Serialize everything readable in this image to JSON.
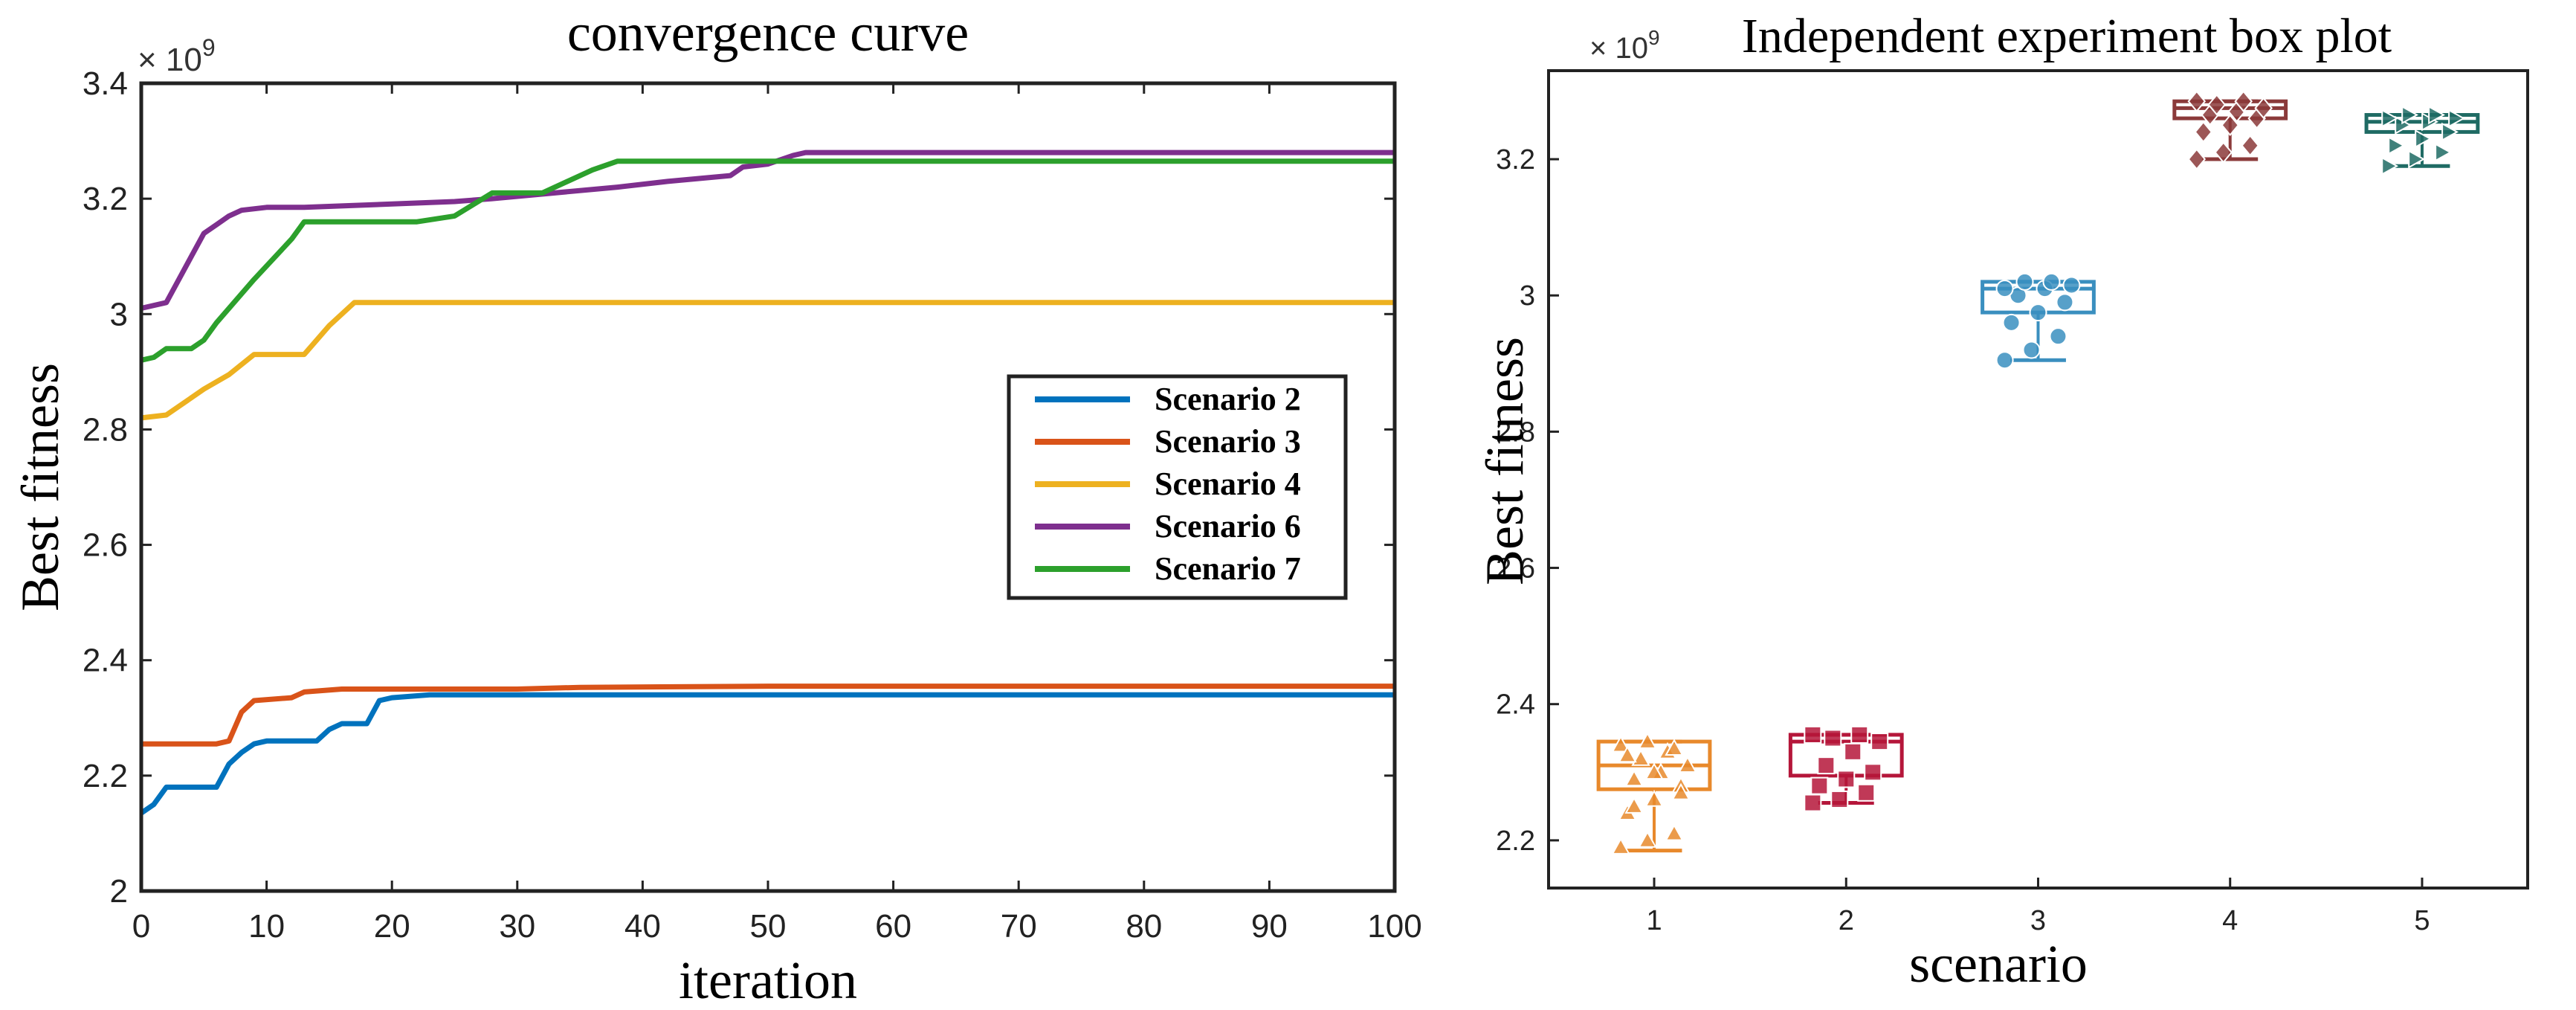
{
  "chart_data": [
    {
      "type": "line",
      "title": "convergence curve",
      "xlabel": "iteration",
      "ylabel": "Best fitness",
      "exponent_label": "× 10",
      "exponent_power": "9",
      "xlim": [
        0,
        100
      ],
      "ylim": [
        2.0,
        3.4
      ],
      "xticks": [
        0,
        10,
        20,
        30,
        40,
        50,
        60,
        70,
        80,
        90,
        100
      ],
      "yticks": [
        2.0,
        2.2,
        2.4,
        2.6,
        2.8,
        3.0,
        3.2,
        3.4
      ],
      "ytick_labels": [
        "2",
        "2.2",
        "2.4",
        "2.6",
        "2.8",
        "3",
        "3.2",
        "3.4"
      ],
      "legend_position": "center-right",
      "series": [
        {
          "name": "Scenario 2",
          "color": "#0072BD",
          "points": [
            [
              0,
              2.135
            ],
            [
              1,
              2.15
            ],
            [
              2,
              2.18
            ],
            [
              3,
              2.18
            ],
            [
              6,
              2.18
            ],
            [
              7,
              2.22
            ],
            [
              8,
              2.24
            ],
            [
              9,
              2.255
            ],
            [
              10,
              2.26
            ],
            [
              14,
              2.26
            ],
            [
              15,
              2.28
            ],
            [
              16,
              2.29
            ],
            [
              18,
              2.29
            ],
            [
              19,
              2.33
            ],
            [
              20,
              2.335
            ],
            [
              23,
              2.34
            ],
            [
              100,
              2.34
            ]
          ]
        },
        {
          "name": "Scenario 3",
          "color": "#D95319",
          "points": [
            [
              0,
              2.255
            ],
            [
              6,
              2.255
            ],
            [
              7,
              2.26
            ],
            [
              8,
              2.31
            ],
            [
              9,
              2.33
            ],
            [
              12,
              2.335
            ],
            [
              13,
              2.345
            ],
            [
              16,
              2.35
            ],
            [
              30,
              2.35
            ],
            [
              35,
              2.353
            ],
            [
              50,
              2.355
            ],
            [
              100,
              2.355
            ]
          ]
        },
        {
          "name": "Scenario 4",
          "color": "#EDB120",
          "points": [
            [
              0,
              2.82
            ],
            [
              2,
              2.825
            ],
            [
              3,
              2.84
            ],
            [
              5,
              2.87
            ],
            [
              7,
              2.895
            ],
            [
              9,
              2.93
            ],
            [
              13,
              2.93
            ],
            [
              15,
              2.98
            ],
            [
              17,
              3.02
            ],
            [
              30,
              3.02
            ],
            [
              50,
              3.02
            ],
            [
              100,
              3.02
            ]
          ]
        },
        {
          "name": "Scenario 6",
          "color": "#7E2F8E",
          "points": [
            [
              0,
              3.01
            ],
            [
              2,
              3.02
            ],
            [
              3,
              3.06
            ],
            [
              4,
              3.1
            ],
            [
              5,
              3.14
            ],
            [
              6,
              3.155
            ],
            [
              7,
              3.17
            ],
            [
              8,
              3.18
            ],
            [
              10,
              3.185
            ],
            [
              13,
              3.185
            ],
            [
              25,
              3.195
            ],
            [
              28,
              3.2
            ],
            [
              38,
              3.22
            ],
            [
              42,
              3.23
            ],
            [
              47,
              3.24
            ],
            [
              48,
              3.255
            ],
            [
              50,
              3.26
            ],
            [
              52,
              3.275
            ],
            [
              53,
              3.28
            ],
            [
              100,
              3.28
            ]
          ]
        },
        {
          "name": "Scenario 7",
          "color": "#2CA02C",
          "points": [
            [
              0,
              2.92
            ],
            [
              1,
              2.925
            ],
            [
              2,
              2.94
            ],
            [
              4,
              2.94
            ],
            [
              5,
              2.955
            ],
            [
              6,
              2.985
            ],
            [
              9,
              3.06
            ],
            [
              12,
              3.13
            ],
            [
              13,
              3.16
            ],
            [
              19,
              3.16
            ],
            [
              22,
              3.16
            ],
            [
              25,
              3.17
            ],
            [
              28,
              3.21
            ],
            [
              32,
              3.21
            ],
            [
              36,
              3.25
            ],
            [
              38,
              3.265
            ],
            [
              100,
              3.265
            ]
          ]
        }
      ]
    },
    {
      "type": "box",
      "title": "Independent experiment box plot",
      "xlabel": "scenario",
      "ylabel": "Best fitness",
      "exponent_label": "× 10",
      "exponent_power": "9",
      "xlim": [
        0.45,
        5.55
      ],
      "ylim": [
        2.13,
        3.33
      ],
      "categories": [
        "1",
        "2",
        "3",
        "4",
        "5"
      ],
      "yticks": [
        2.2,
        2.4,
        2.6,
        2.8,
        3.0,
        3.2
      ],
      "ytick_labels": [
        "2.2",
        "2.4",
        "2.6",
        "2.8",
        "3",
        "3.2"
      ],
      "boxes": [
        {
          "category": "1",
          "color": "#E8892B",
          "marker": "triangle",
          "min": 2.185,
          "q1": 2.275,
          "median": 2.31,
          "q3": 2.345,
          "max": 2.345,
          "points": [
            2.19,
            2.2,
            2.21,
            2.24,
            2.26,
            2.28,
            2.29,
            2.3,
            2.31,
            2.32,
            2.33,
            2.34,
            2.345,
            2.335,
            2.325,
            2.3,
            2.27,
            2.25
          ]
        },
        {
          "category": "2",
          "color": "#B5163A",
          "marker": "square",
          "min": 2.255,
          "q1": 2.295,
          "median": 2.345,
          "q3": 2.355,
          "max": 2.355,
          "points": [
            2.255,
            2.26,
            2.27,
            2.28,
            2.29,
            2.3,
            2.31,
            2.33,
            2.345,
            2.35,
            2.355,
            2.355
          ]
        },
        {
          "category": "3",
          "color": "#3A8FBF",
          "marker": "circle",
          "min": 2.905,
          "q1": 2.975,
          "median": 3.01,
          "q3": 3.02,
          "max": 3.02,
          "points": [
            2.905,
            2.92,
            2.94,
            2.96,
            2.975,
            2.99,
            3.0,
            3.01,
            3.015,
            3.02,
            3.02,
            3.01
          ]
        },
        {
          "category": "4",
          "color": "#8B3A3A",
          "marker": "diamond",
          "min": 3.2,
          "q1": 3.26,
          "median": 3.275,
          "q3": 3.285,
          "max": 3.285,
          "points": [
            3.2,
            3.21,
            3.22,
            3.24,
            3.25,
            3.26,
            3.265,
            3.27,
            3.275,
            3.28,
            3.285,
            3.285
          ]
        },
        {
          "category": "5",
          "color": "#1F6B64",
          "marker": "triangle-right",
          "min": 3.19,
          "q1": 3.24,
          "median": 3.255,
          "q3": 3.265,
          "max": 3.265,
          "points": [
            3.19,
            3.2,
            3.21,
            3.22,
            3.23,
            3.24,
            3.25,
            3.255,
            3.26,
            3.265,
            3.265,
            3.26
          ]
        }
      ]
    }
  ]
}
